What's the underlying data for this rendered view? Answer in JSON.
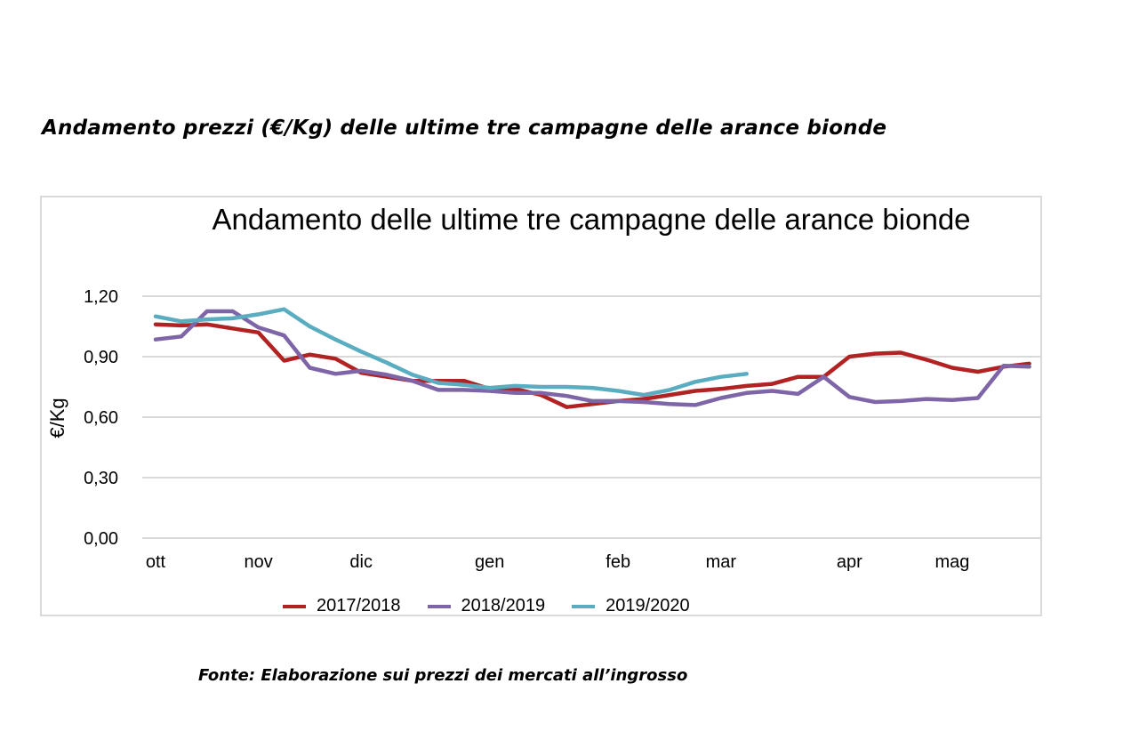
{
  "heading": "Andamento prezzi (€/Kg) delle ultime tre campagne delle arance bionde",
  "source": "Fonte: Elaborazione sui prezzi dei mercati all’ingrosso",
  "chart_data": {
    "type": "line",
    "title": "Andamento delle ultime tre campagne delle arance bionde",
    "ylabel": "€/Kg",
    "xlabel": "",
    "ylim": [
      0,
      1.2
    ],
    "yticks": [
      "0,00",
      "0,30",
      "0,60",
      "0,90",
      "1,20"
    ],
    "ytick_values": [
      0,
      0.3,
      0.6,
      0.9,
      1.2
    ],
    "x_month_labels": [
      {
        "label": "ott",
        "x": 0
      },
      {
        "label": "nov",
        "x": 4
      },
      {
        "label": "dic",
        "x": 8
      },
      {
        "label": "gen",
        "x": 13
      },
      {
        "label": "feb",
        "x": 18
      },
      {
        "label": "mar",
        "x": 22
      },
      {
        "label": "apr",
        "x": 27
      },
      {
        "label": "mag",
        "x": 31
      }
    ],
    "x_count": 35,
    "grid": true,
    "legend_position": "bottom",
    "series": [
      {
        "name": "2017/2018",
        "color": "#b22222",
        "values": [
          1.06,
          1.055,
          1.06,
          1.04,
          1.02,
          0.88,
          0.91,
          0.89,
          0.82,
          0.8,
          0.78,
          0.78,
          0.78,
          0.74,
          0.74,
          0.71,
          0.65,
          0.665,
          0.68,
          0.69,
          0.71,
          0.73,
          0.74,
          0.755,
          0.765,
          0.8,
          0.8,
          0.9,
          0.915,
          0.92,
          0.885,
          0.845,
          0.825,
          0.85,
          0.865
        ]
      },
      {
        "name": "2018/2019",
        "color": "#7e65a8",
        "values": [
          0.985,
          1.0,
          1.125,
          1.125,
          1.045,
          1.005,
          0.845,
          0.815,
          0.83,
          0.81,
          0.78,
          0.735,
          0.735,
          0.73,
          0.72,
          0.72,
          0.705,
          0.68,
          0.68,
          0.675,
          0.665,
          0.66,
          0.695,
          0.72,
          0.73,
          0.715,
          0.8,
          0.7,
          0.675,
          0.68,
          0.69,
          0.685,
          0.695,
          0.855,
          0.85
        ]
      },
      {
        "name": "2019/2020",
        "color": "#5aacc0",
        "values": [
          1.1,
          1.075,
          1.085,
          1.09,
          1.11,
          1.135,
          1.05,
          0.985,
          0.925,
          0.87,
          0.81,
          0.77,
          0.76,
          0.745,
          0.755,
          0.75,
          0.75,
          0.745,
          0.73,
          0.71,
          0.735,
          0.775,
          0.8,
          0.815
        ]
      }
    ]
  }
}
